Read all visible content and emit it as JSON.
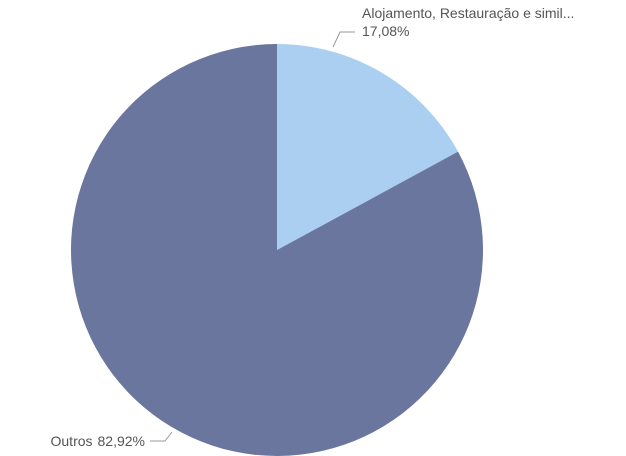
{
  "chart_data": {
    "type": "pie",
    "categories": [
      "Alojamento, Restauração e simil...",
      "Outros"
    ],
    "values": [
      17.08,
      82.92
    ],
    "value_labels": [
      "17,08%",
      "82,92%"
    ],
    "colors": [
      "#abcff0",
      "#6b769f"
    ]
  }
}
